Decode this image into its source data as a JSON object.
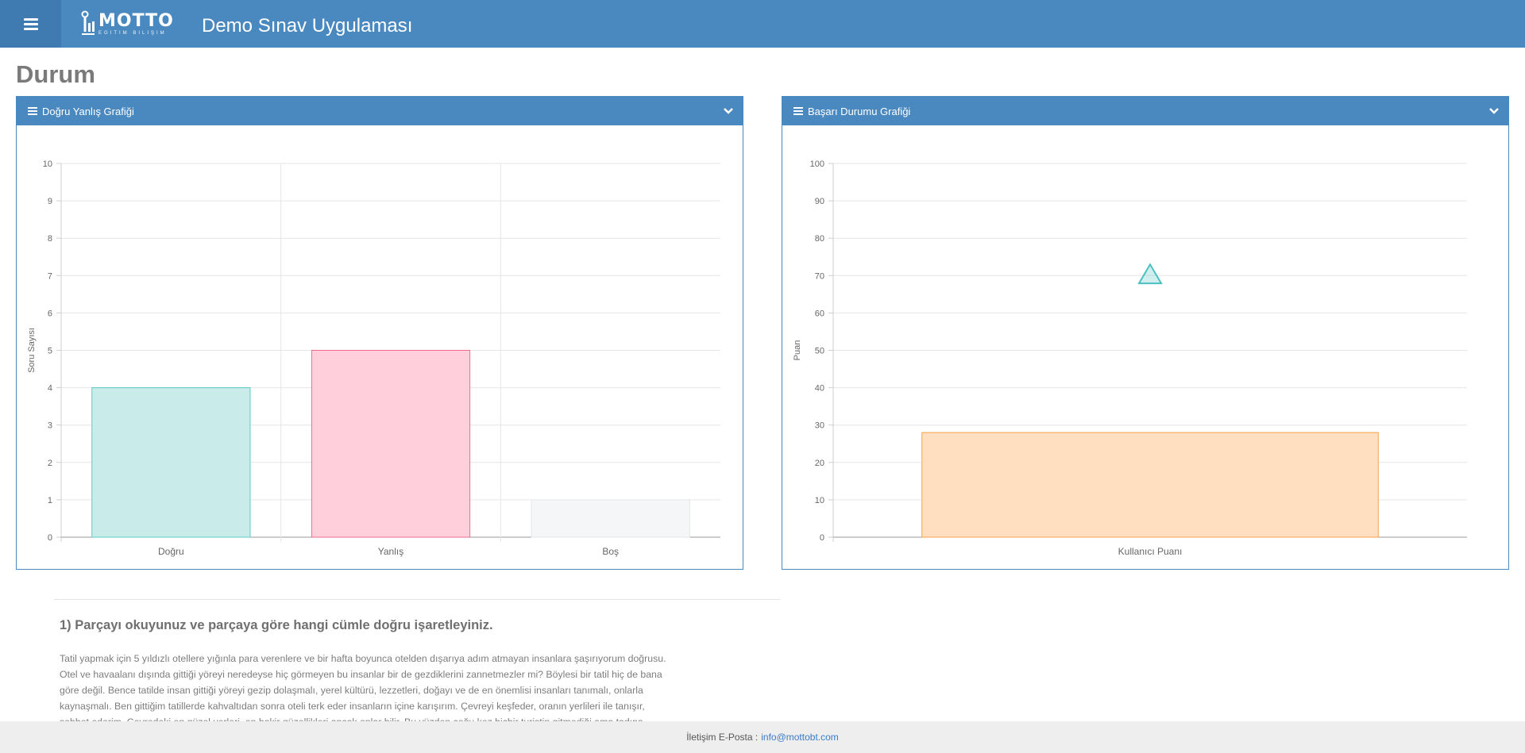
{
  "header": {
    "logo_text": "MOTTO",
    "logo_tagline": "EĞİTİM BİLİŞİM",
    "app_title": "Demo Sınav Uygulaması",
    "menu_icon": "hamburger-icon",
    "background": "#4a89c0"
  },
  "page": {
    "title": "Durum"
  },
  "panels": [
    {
      "title": "Doğru Yanlış Grafiği",
      "icon": "list-icon",
      "toggle_icon": "chevron-down-icon"
    },
    {
      "title": "Başarı Durumu Grafiği",
      "icon": "list-icon",
      "toggle_icon": "chevron-down-icon"
    }
  ],
  "chart_data": [
    {
      "type": "bar",
      "categories": [
        "Doğru",
        "Yanlış",
        "Boş"
      ],
      "values": [
        4,
        5,
        1
      ],
      "colors": [
        "#c9ecea",
        "#ffd0dc",
        "#f5f6f8"
      ],
      "border_colors": [
        "#5ccbc3",
        "#f06a8f",
        "#e4e6ea"
      ],
      "ylabel": "Soru Sayısı",
      "ylim": [
        0,
        10
      ],
      "yticks": [
        0,
        1,
        2,
        3,
        4,
        5,
        6,
        7,
        8,
        9,
        10
      ],
      "grid": true
    },
    {
      "type": "bar",
      "categories": [
        "Kullanıcı Puanı"
      ],
      "values": [
        28
      ],
      "colors": [
        "#ffdfc0"
      ],
      "border_colors": [
        "#f5a24a"
      ],
      "marker": {
        "shape": "triangle",
        "value": 70,
        "color": "#4bc0c0"
      },
      "ylabel": "Puan",
      "ylim": [
        0,
        100
      ],
      "yticks": [
        0,
        10,
        20,
        30,
        40,
        50,
        60,
        70,
        80,
        90,
        100
      ],
      "grid": true
    }
  ],
  "question": {
    "title": "1) Parçayı okuyunuz ve parçaya göre hangi cümle doğru işaretleyiniz.",
    "lines": [
      "Tatil yapmak için 5 yıldızlı otellere yığınla para verenlere ve bir hafta boyunca otelden dışarıya adım atmayan insanlara şaşırıyorum doğrusu.",
      "Otel ve havaalanı dışında gittiği yöreyi neredeyse hiç görmeyen bu insanlar bir de gezdiklerini zannetmezler mi? Böylesi bir tatil hiç de bana",
      "göre değil. Bence tatilde insan gittiği yöreyi gezip dolaşmalı, yerel kültürü, lezzetleri, doğayı ve de en önemlisi insanları tanımalı, onlarla",
      "kaynaşmalı. Ben gittiğim tatillerde kahvaltıdan sonra oteli terk eder insanların içine karışırım. Çevreyi keşfeder, oranın yerlileri ile tanışır,",
      "sohbet ederim. Çevredeki en güzel yerleri, en bakir güzellikleri ancak onlar bilir. Bu yüzden çoğu kez hiçbir turistin gitmediği ama tadına"
    ]
  },
  "footer": {
    "label": "İletişim E-Posta :",
    "email": "info@mottobt.com",
    "link_color": "#3a7bc8"
  }
}
